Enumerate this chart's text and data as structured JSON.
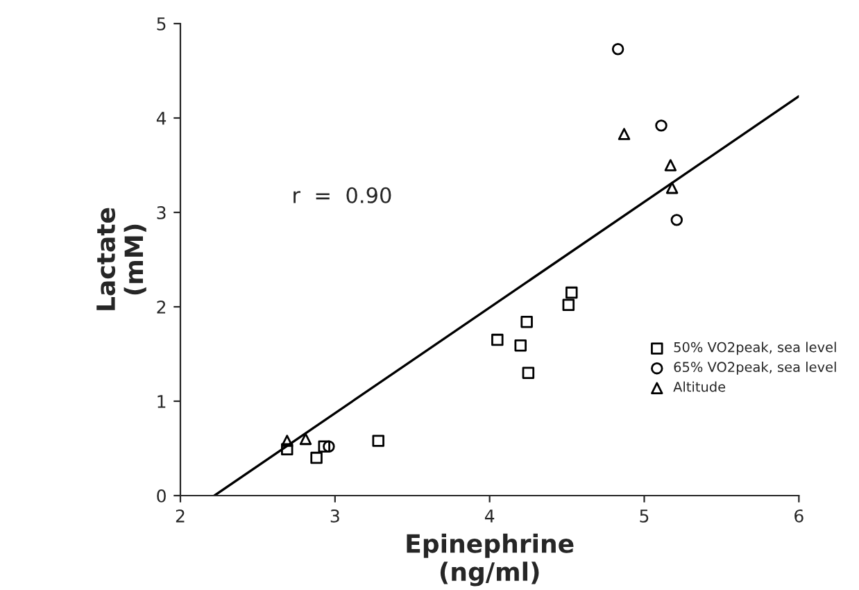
{
  "chart_data": {
    "type": "scatter",
    "xlabel": "Epinephrine\n(ng/ml)",
    "ylabel": "Lactate\n(mM)",
    "xlim": [
      2,
      6
    ],
    "ylim": [
      0,
      5
    ],
    "xticks": [
      2,
      3,
      4,
      5,
      6
    ],
    "yticks": [
      0,
      1,
      2,
      3,
      4,
      5
    ],
    "grid": false,
    "legend": "right",
    "annotations": [
      "r  =  0.90"
    ],
    "series": [
      {
        "name": "50% VO2peak, sea level",
        "color": "#000000",
        "marker": "square",
        "x": [
          2.69,
          2.88,
          2.93,
          3.28,
          4.05,
          4.2,
          4.24,
          4.25,
          4.51,
          4.53
        ],
        "values": [
          0.49,
          0.4,
          0.52,
          0.58,
          1.65,
          1.59,
          1.84,
          1.3,
          2.02,
          2.15
        ]
      },
      {
        "name": "65% VO2peak, sea level",
        "color": "#000000",
        "marker": "circle",
        "x": [
          2.96,
          4.83,
          5.11,
          5.21
        ],
        "values": [
          0.52,
          4.73,
          3.92,
          2.92
        ]
      },
      {
        "name": "Altitude",
        "color": "#000000",
        "marker": "triangle",
        "x": [
          2.69,
          2.81,
          4.87,
          5.17,
          5.18
        ],
        "values": [
          0.58,
          0.6,
          3.83,
          3.5,
          3.26
        ]
      },
      {
        "type": "line",
        "color": "#000000",
        "marker": "none",
        "x": [
          2.22,
          6
        ],
        "values": [
          0,
          4.23
        ]
      }
    ]
  }
}
